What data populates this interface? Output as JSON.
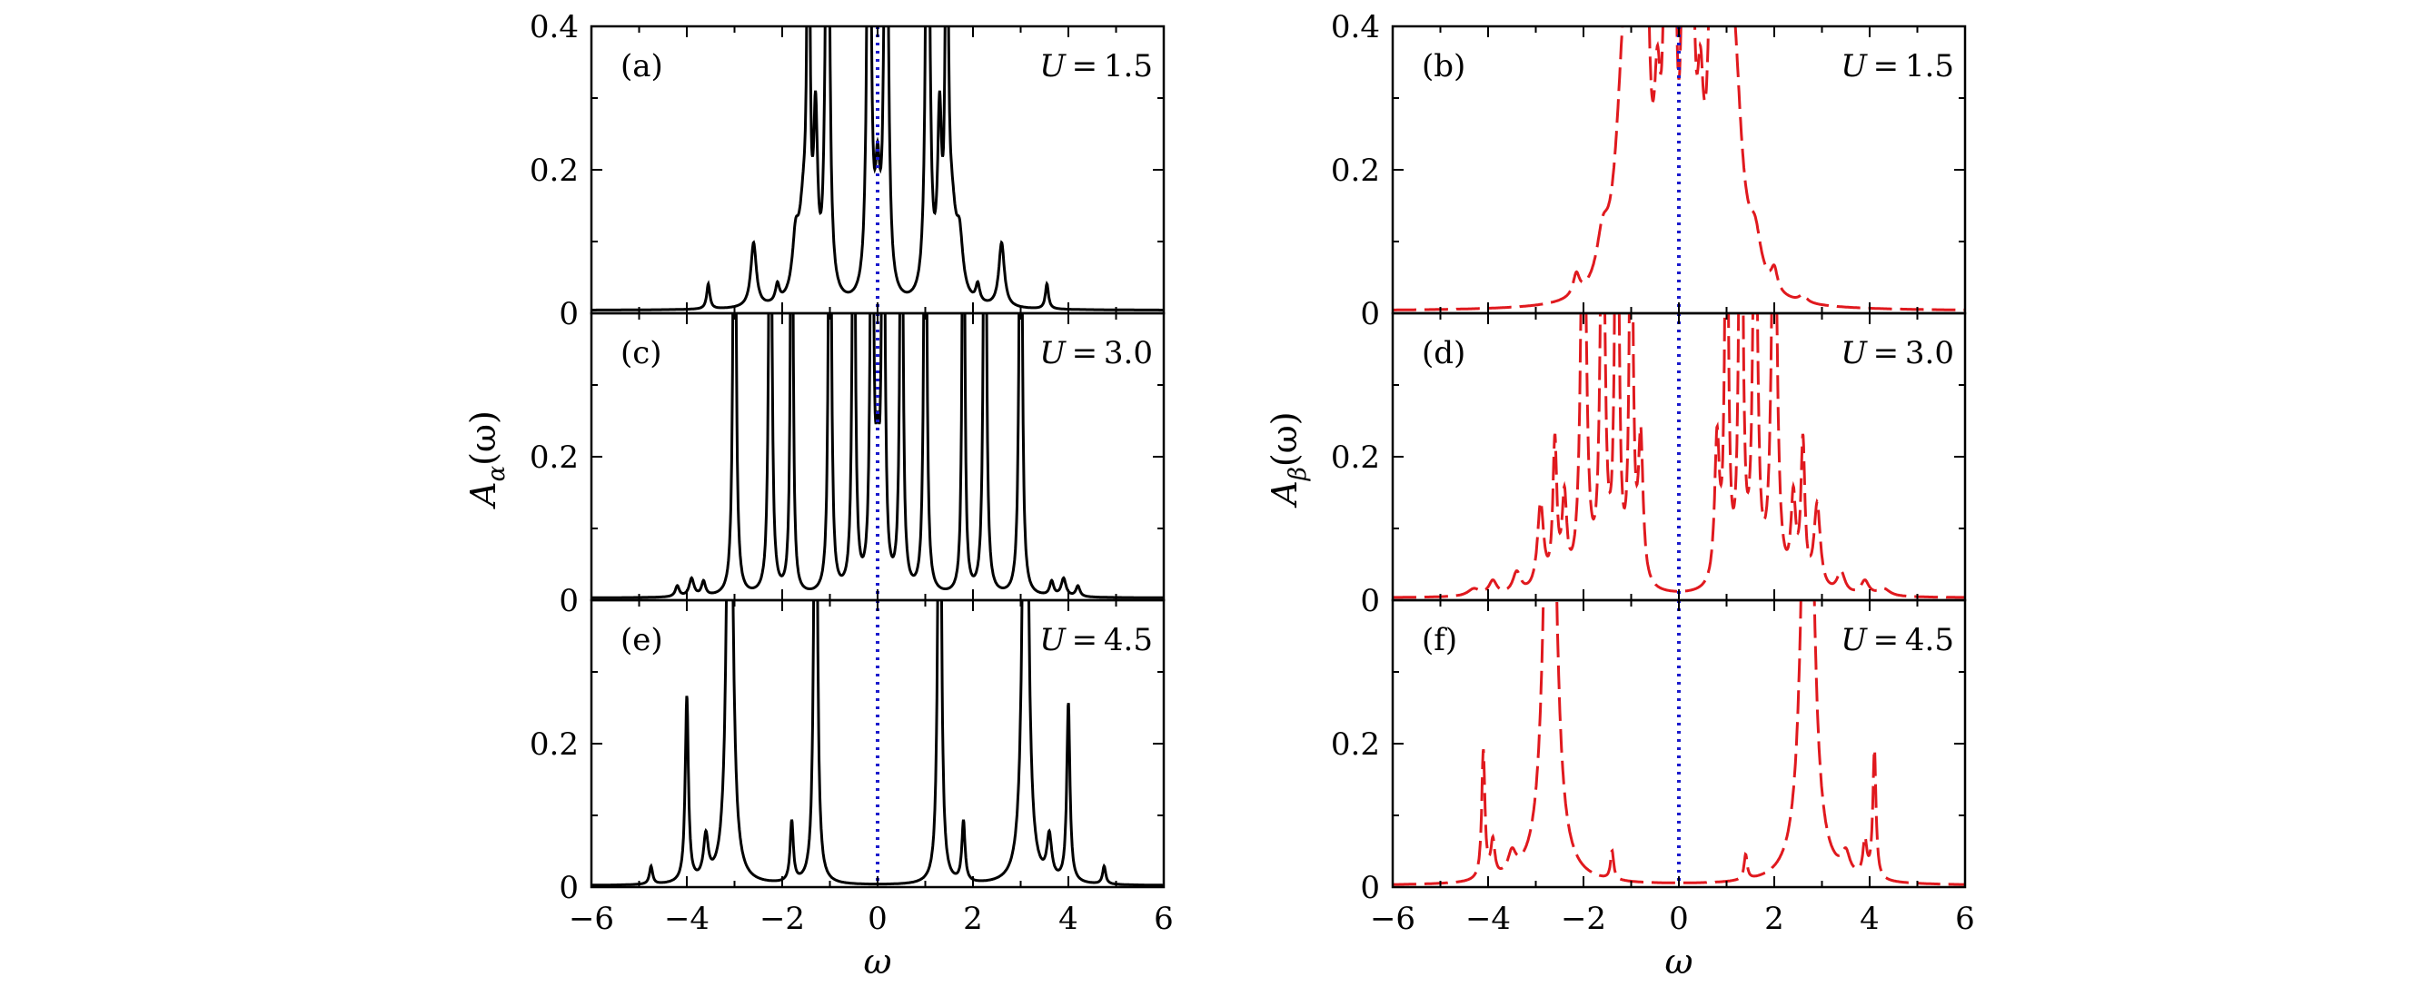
{
  "figure": {
    "columns": [
      {
        "ylabel": "A_α(ω)",
        "ylabel_main": "A",
        "ylabel_sub": "α",
        "ylabel_rest": "(ω)",
        "color": "#000000",
        "dash": "solid"
      },
      {
        "ylabel": "A_β(ω)",
        "ylabel_main": "A",
        "ylabel_sub": "β",
        "ylabel_rest": "(ω)",
        "color": "#e0191e",
        "dash": "dashed"
      }
    ],
    "xlabel": "ω",
    "reference_line": {
      "x": 0,
      "color": "#1a1acc",
      "style": "dotted"
    }
  },
  "chart_data": [
    {
      "type": "line",
      "panel": "(a)",
      "U_label": "U = 1.5",
      "U_value": "1.5",
      "column": 0,
      "row": 0,
      "xlim": [
        -6,
        6
      ],
      "ylim": [
        0,
        0.4
      ],
      "x_ticks": [
        -6,
        -4,
        -2,
        0,
        2,
        4,
        6
      ],
      "y_ticks": [
        0,
        0.2,
        0.4
      ],
      "y_tick_labels": [
        "0",
        "0.2",
        "0.4"
      ],
      "series": [
        {
          "style": "solid",
          "color": "#000000",
          "baseline": 0.004,
          "peaks": [
            [
              -3.55,
              0.035,
              0.04
            ],
            [
              -2.6,
              0.09,
              0.07
            ],
            [
              -2.1,
              0.025,
              0.05
            ],
            [
              -1.72,
              0.07,
              0.08
            ],
            [
              -1.55,
              0.12,
              0.12
            ],
            [
              -1.45,
              0.9,
              0.025
            ],
            [
              -1.3,
              0.23,
              0.05
            ],
            [
              -1.05,
              0.95,
              0.04
            ],
            [
              -0.18,
              0.95,
              0.04
            ],
            [
              0,
              0.14,
              0.06
            ],
            [
              0.18,
              0.95,
              0.04
            ],
            [
              1.05,
              0.95,
              0.04
            ],
            [
              1.3,
              0.23,
              0.05
            ],
            [
              1.45,
              0.9,
              0.025
            ],
            [
              1.55,
              0.12,
              0.12
            ],
            [
              1.72,
              0.07,
              0.08
            ],
            [
              2.1,
              0.025,
              0.05
            ],
            [
              2.6,
              0.09,
              0.07
            ],
            [
              3.55,
              0.035,
              0.04
            ]
          ]
        }
      ]
    },
    {
      "type": "line",
      "panel": "(b)",
      "U_label": "U = 1.5",
      "U_value": "1.5",
      "column": 1,
      "row": 0,
      "xlim": [
        -6,
        6
      ],
      "ylim": [
        0,
        0.4
      ],
      "x_ticks": [
        -6,
        -4,
        -2,
        0,
        2,
        4,
        6
      ],
      "y_ticks": [
        0,
        0.2,
        0.4
      ],
      "y_tick_labels": [
        "0",
        "0.2",
        "0.4"
      ],
      "series": [
        {
          "style": "dashed",
          "color": "#e0191e",
          "baseline": 0.003,
          "peaks": [
            [
              -2.15,
              0.03,
              0.08
            ],
            [
              -1.6,
              0.06,
              0.15
            ],
            [
              -1.15,
              0.3,
              0.2
            ],
            [
              -0.95,
              0.7,
              0.08
            ],
            [
              -0.7,
              0.5,
              0.08
            ],
            [
              -0.45,
              0.2,
              0.08
            ],
            [
              -0.25,
              0.9,
              0.05
            ],
            [
              -0.1,
              0.5,
              0.05
            ],
            [
              0.1,
              0.5,
              0.05
            ],
            [
              0.25,
              0.9,
              0.05
            ],
            [
              0.45,
              0.2,
              0.08
            ],
            [
              0.7,
              0.5,
              0.08
            ],
            [
              0.95,
              0.7,
              0.08
            ],
            [
              1.15,
              0.3,
              0.2
            ],
            [
              1.6,
              0.06,
              0.15
            ],
            [
              2.0,
              0.03,
              0.08
            ],
            [
              2.6,
              0.01,
              0.1
            ]
          ]
        }
      ]
    },
    {
      "type": "line",
      "panel": "(c)",
      "U_label": "U = 3.0",
      "U_value": "3.0",
      "column": 0,
      "row": 1,
      "xlim": [
        -6,
        6
      ],
      "ylim": [
        0,
        0.4
      ],
      "x_ticks": [
        -6,
        -4,
        -2,
        0,
        2,
        4,
        6
      ],
      "y_ticks": [
        0,
        0.2
      ],
      "y_tick_labels": [
        "0",
        "0.2"
      ],
      "series": [
        {
          "style": "solid",
          "color": "#000000",
          "baseline": 0.003,
          "peaks": [
            [
              -4.2,
              0.015,
              0.05
            ],
            [
              -3.9,
              0.025,
              0.06
            ],
            [
              -3.65,
              0.02,
              0.05
            ],
            [
              -3.0,
              0.95,
              0.03
            ],
            [
              -2.25,
              0.95,
              0.03
            ],
            [
              -1.8,
              0.95,
              0.025
            ],
            [
              -1.0,
              0.9,
              0.03
            ],
            [
              -0.5,
              0.9,
              0.03
            ],
            [
              -0.12,
              0.95,
              0.03
            ],
            [
              0,
              0.14,
              0.05
            ],
            [
              0.12,
              0.95,
              0.03
            ],
            [
              0.5,
              0.9,
              0.03
            ],
            [
              1.0,
              0.9,
              0.03
            ],
            [
              1.8,
              0.95,
              0.025
            ],
            [
              2.25,
              0.95,
              0.03
            ],
            [
              3.0,
              0.95,
              0.03
            ],
            [
              3.65,
              0.02,
              0.05
            ],
            [
              3.9,
              0.025,
              0.06
            ],
            [
              4.2,
              0.015,
              0.05
            ]
          ]
        }
      ]
    },
    {
      "type": "line",
      "panel": "(d)",
      "U_label": "U = 3.0",
      "U_value": "3.0",
      "column": 1,
      "row": 1,
      "xlim": [
        -6,
        6
      ],
      "ylim": [
        0,
        0.4
      ],
      "x_ticks": [
        -6,
        -4,
        -2,
        0,
        2,
        4,
        6
      ],
      "y_ticks": [
        0,
        0.2
      ],
      "y_tick_labels": [
        "0",
        "0.2"
      ],
      "series": [
        {
          "style": "dashed",
          "color": "#e0191e",
          "baseline": 0.003,
          "peaks": [
            [
              -4.3,
              0.01,
              0.15
            ],
            [
              -3.9,
              0.02,
              0.1
            ],
            [
              -3.4,
              0.03,
              0.1
            ],
            [
              -2.9,
              0.12,
              0.08
            ],
            [
              -2.6,
              0.2,
              0.05
            ],
            [
              -2.4,
              0.12,
              0.06
            ],
            [
              -2.0,
              0.7,
              0.06
            ],
            [
              -1.6,
              0.7,
              0.05
            ],
            [
              -1.3,
              0.9,
              0.04
            ],
            [
              -1.0,
              0.7,
              0.04
            ],
            [
              -0.8,
              0.2,
              0.06
            ],
            [
              0.8,
              0.2,
              0.06
            ],
            [
              1.0,
              0.7,
              0.04
            ],
            [
              1.3,
              0.9,
              0.04
            ],
            [
              1.6,
              0.7,
              0.05
            ],
            [
              2.0,
              0.7,
              0.06
            ],
            [
              2.4,
              0.12,
              0.06
            ],
            [
              2.6,
              0.2,
              0.05
            ],
            [
              2.9,
              0.12,
              0.08
            ],
            [
              3.4,
              0.03,
              0.1
            ],
            [
              3.9,
              0.02,
              0.1
            ],
            [
              4.3,
              0.01,
              0.15
            ]
          ]
        }
      ]
    },
    {
      "type": "line",
      "panel": "(e)",
      "U_label": "U = 4.5",
      "U_value": "4.5",
      "column": 0,
      "row": 2,
      "xlim": [
        -6,
        6
      ],
      "ylim": [
        0,
        0.4
      ],
      "x_ticks": [
        -6,
        -4,
        -2,
        0,
        2,
        4,
        6
      ],
      "y_ticks": [
        0,
        0.2
      ],
      "y_tick_labels": [
        "0",
        "0.2"
      ],
      "series": [
        {
          "style": "solid",
          "color": "#000000",
          "baseline": 0.002,
          "peaks": [
            [
              -4.75,
              0.025,
              0.04
            ],
            [
              -4.0,
              0.26,
              0.04
            ],
            [
              -3.6,
              0.06,
              0.06
            ],
            [
              -3.1,
              0.95,
              0.06
            ],
            [
              -1.8,
              0.085,
              0.04
            ],
            [
              -1.3,
              0.95,
              0.035
            ],
            [
              1.3,
              0.95,
              0.035
            ],
            [
              1.8,
              0.085,
              0.04
            ],
            [
              3.1,
              0.95,
              0.06
            ],
            [
              3.6,
              0.06,
              0.06
            ],
            [
              4.0,
              0.25,
              0.04
            ],
            [
              4.75,
              0.025,
              0.04
            ]
          ]
        }
      ]
    },
    {
      "type": "line",
      "panel": "(f)",
      "U_label": "U = 4.5",
      "U_value": "4.5",
      "column": 1,
      "row": 2,
      "xlim": [
        -6,
        6
      ],
      "ylim": [
        0,
        0.4
      ],
      "x_ticks": [
        -6,
        -4,
        -2,
        0,
        2,
        4,
        6
      ],
      "y_ticks": [
        0,
        0.2
      ],
      "y_tick_labels": [
        "0",
        "0.2"
      ],
      "series": [
        {
          "style": "dashed",
          "color": "#e0191e",
          "baseline": 0.002,
          "peaks": [
            [
              -4.1,
              0.18,
              0.04
            ],
            [
              -3.9,
              0.05,
              0.05
            ],
            [
              -3.5,
              0.03,
              0.1
            ],
            [
              -2.7,
              0.95,
              0.12
            ],
            [
              -1.4,
              0.04,
              0.04
            ],
            [
              1.4,
              0.035,
              0.04
            ],
            [
              2.7,
              0.95,
              0.12
            ],
            [
              3.5,
              0.03,
              0.1
            ],
            [
              3.9,
              0.05,
              0.05
            ],
            [
              4.1,
              0.18,
              0.04
            ]
          ]
        }
      ]
    }
  ]
}
